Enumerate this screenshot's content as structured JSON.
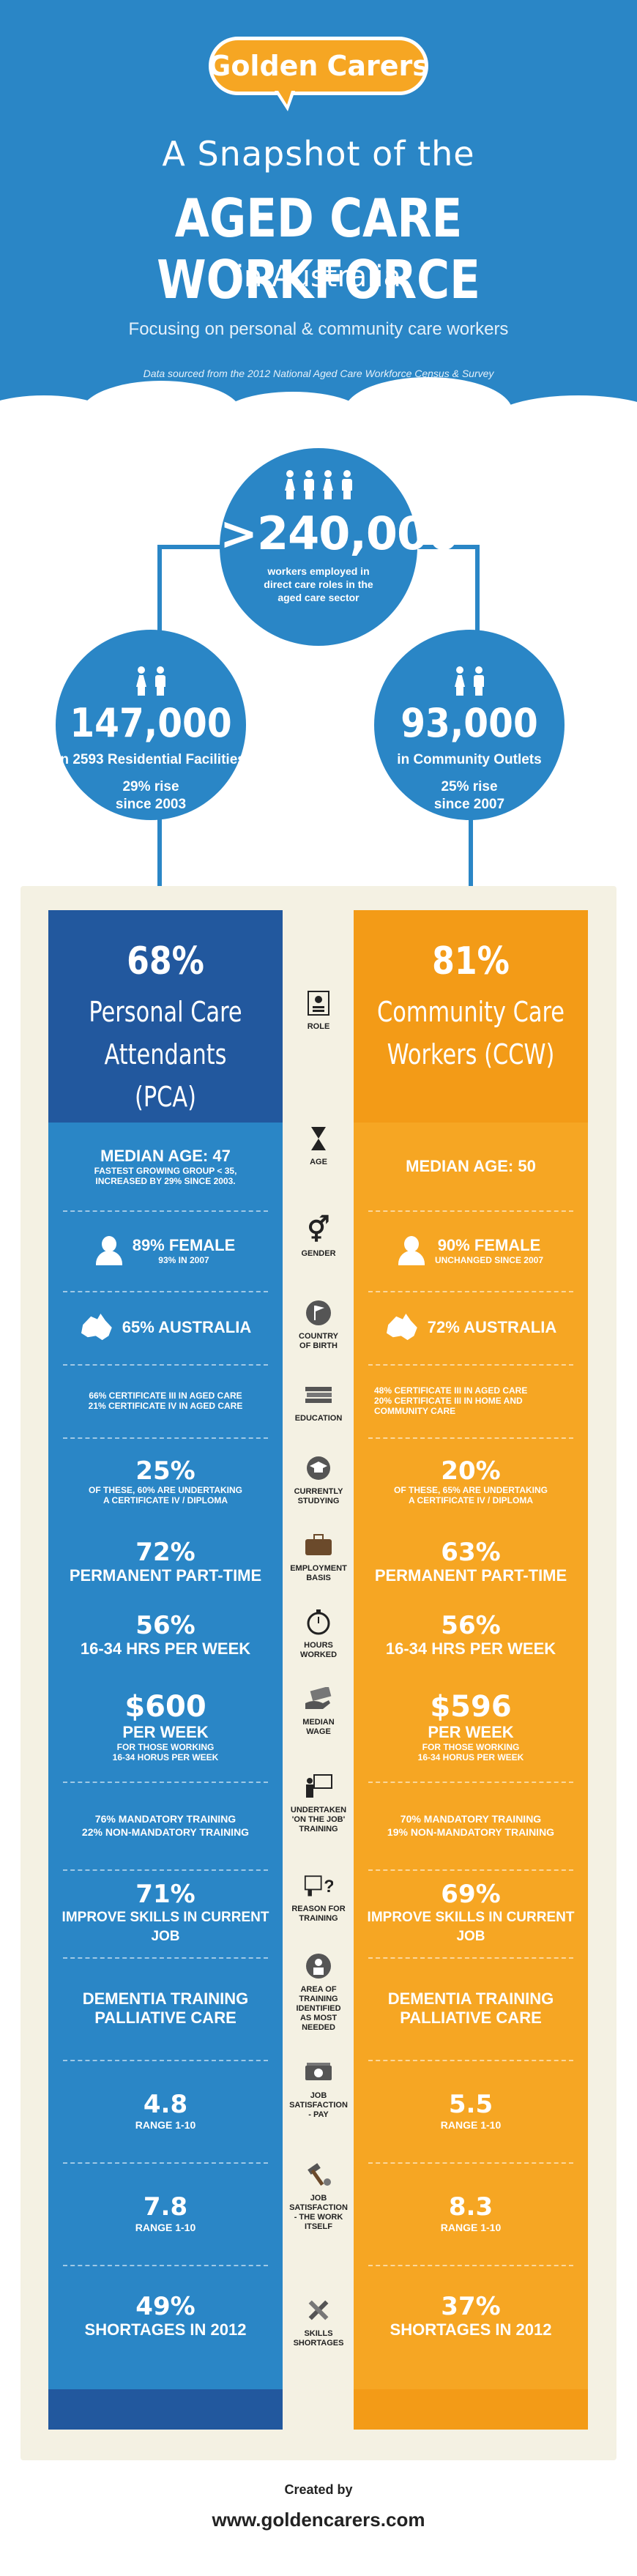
{
  "logo": {
    "golden": "Golden",
    "carers": "Carers"
  },
  "header": {
    "line1": "A Snapshot of the",
    "line2": "AGED CARE WORKFORCE",
    "line3": "in Australia",
    "subtitle": "Focusing on personal & community care workers",
    "source": "Data sourced from the 2012 National Aged Care Workforce Census & Survey"
  },
  "total": {
    "number": ">240,000",
    "desc": "workers employed in direct care roles in the aged care sector"
  },
  "residential": {
    "number": "147,000",
    "desc": "in 2593 Residential Facilities",
    "rise": "29% rise",
    "since": "since 2003"
  },
  "community": {
    "number": "93,000",
    "desc": "in Community Outlets",
    "rise": "25% rise",
    "since": "since 2007"
  },
  "pca": {
    "pct": "68%",
    "title1": "Personal Care",
    "title2": "Attendants (PCA)",
    "age": "MEDIAN AGE: 47",
    "age_note1": "FASTEST GROWING GROUP < 35,",
    "age_note2": "INCREASED BY 29% SINCE 2003.",
    "female": "89% FEMALE",
    "female_note": "93% IN 2007",
    "birth": "65% AUSTRALIA",
    "edu1": "66% CERTIFICATE III IN AGED CARE",
    "edu2": "21% CERTIFICATE IV IN AGED CARE",
    "study_pct": "25%",
    "study_note1": "OF THESE, 60% ARE UNDERTAKING",
    "study_note2": "A CERTIFICATE IV / DIPLOMA",
    "emp_pct": "72%",
    "emp": "PERMANENT PART-TIME",
    "hrs_pct": "56%",
    "hrs": "16-34 HRS PER WEEK",
    "wage": "$600",
    "wage_per": "PER WEEK",
    "wage_note1": "FOR THOSE WORKING",
    "wage_note2": "16-34 HORUS PER WEEK",
    "train1": "76% MANDATORY TRAINING",
    "train2": "22% NON-MANDATORY TRAINING",
    "reason_pct": "71%",
    "reason": "IMPROVE SKILLS IN CURRENT JOB",
    "area1": "DEMENTIA TRAINING",
    "area2": "PALLIATIVE CARE",
    "pay": "4.8",
    "pay_range": "RANGE 1-10",
    "work": "7.8",
    "work_range": "RANGE 1-10",
    "short_pct": "49%",
    "short": "SHORTAGES IN 2012"
  },
  "ccw": {
    "pct": "81%",
    "title1": "Community Care",
    "title2": "Workers (CCW)",
    "age": "MEDIAN AGE: 50",
    "female": "90% FEMALE",
    "female_note": "UNCHANGED SINCE 2007",
    "birth": "72% AUSTRALIA",
    "edu1": "48% CERTIFICATE III IN AGED CARE",
    "edu2": "20% CERTIFICATE III IN HOME AND",
    "edu3": "COMMUNITY CARE",
    "study_pct": "20%",
    "study_note1": "OF THESE, 65% ARE UNDERTAKING",
    "study_note2": "A CERTIFICATE IV / DIPLOMA",
    "emp_pct": "63%",
    "emp": "PERMANENT PART-TIME",
    "hrs_pct": "56%",
    "hrs": "16-34 HRS PER WEEK",
    "wage": "$596",
    "wage_per": "PER WEEK",
    "wage_note1": "FOR THOSE WORKING",
    "wage_note2": "16-34 HORUS PER WEEK",
    "train1": "70% MANDATORY TRAINING",
    "train2": "19% NON-MANDATORY TRAINING",
    "reason_pct": "69%",
    "reason": "IMPROVE SKILLS IN CURRENT JOB",
    "area1": "DEMENTIA TRAINING",
    "area2": "PALLIATIVE CARE",
    "pay": "5.5",
    "pay_range": "RANGE 1-10",
    "work": "8.3",
    "work_range": "RANGE 1-10",
    "short_pct": "37%",
    "short": "SHORTAGES IN 2012"
  },
  "labels": {
    "role": "ROLE",
    "age": "AGE",
    "gender": "GENDER",
    "birth1": "COUNTRY",
    "birth2": "OF BIRTH",
    "education": "EDUCATION",
    "study1": "CURRENTLY",
    "study2": "STUDYING",
    "emp1": "EMPLOYMENT",
    "emp2": "BASIS",
    "hrs1": "HOURS",
    "hrs2": "WORKED",
    "wage1": "MEDIAN",
    "wage2": "WAGE",
    "train1": "UNDERTAKEN",
    "train2": "'ON THE JOB'",
    "train3": "TRAINING",
    "reason1": "REASON FOR",
    "reason2": "TRAINING",
    "area1": "AREA OF",
    "area2": "TRAINING",
    "area3": "IDENTIFIED",
    "area4": "AS MOST",
    "area5": "NEEDED",
    "pay1": "JOB",
    "pay2": "SATISFACTION",
    "pay3": "- PAY",
    "work1": "JOB",
    "work2": "SATISFACTION",
    "work3": "- THE WORK",
    "work4": "ITSELF",
    "short1": "SKILLS",
    "short2": "SHORTAGES"
  },
  "footer": {
    "created": "Created by",
    "url": "www.goldencarers.com"
  }
}
